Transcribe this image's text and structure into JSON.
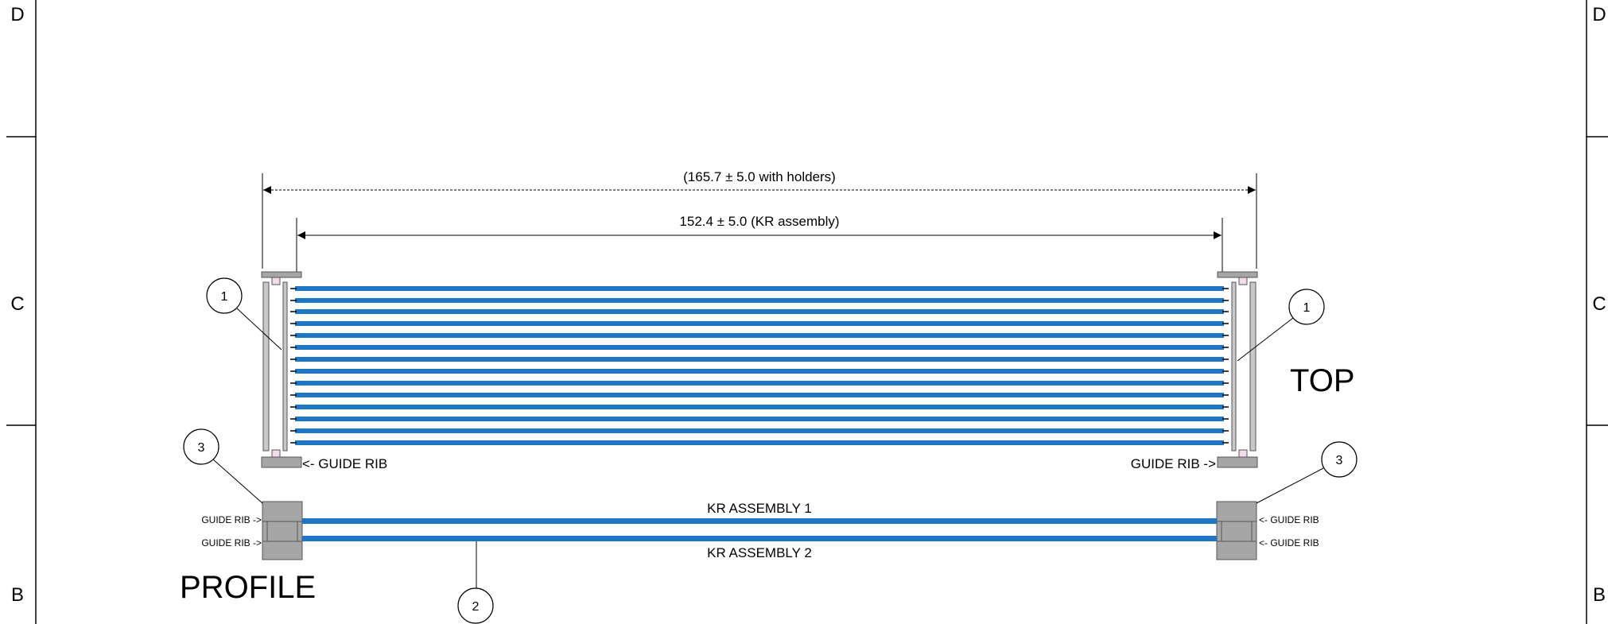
{
  "frame": {
    "zone_letters": [
      "D",
      "C",
      "B"
    ]
  },
  "dimensions": {
    "overall": "(165.7 ± 5.0 with holders)",
    "assembly": "152.4 ± 5.0 (KR assembly)"
  },
  "top_view": {
    "title": "TOP",
    "guide_rib_left": "<- GUIDE RIB",
    "guide_rib_right": "GUIDE RIB ->"
  },
  "profile_view": {
    "title": "PROFILE",
    "kr_assembly_1": "KR ASSEMBLY 1",
    "kr_assembly_2": "KR ASSEMBLY 2",
    "left_guide_rib_upper": "GUIDE RIB ->",
    "left_guide_rib_lower": "GUIDE RIB ->",
    "right_guide_rib_upper": "<- GUIDE RIB",
    "right_guide_rib_lower": "<- GUIDE RIB"
  },
  "balloons": {
    "top_left": "1",
    "top_right": "1",
    "profile_left": "3",
    "profile_right": "3",
    "profile_bottom": "2"
  },
  "colors": {
    "cable_blue": "#1f77c4",
    "holder_gray": "#a6a6a6",
    "line": "#000000"
  }
}
